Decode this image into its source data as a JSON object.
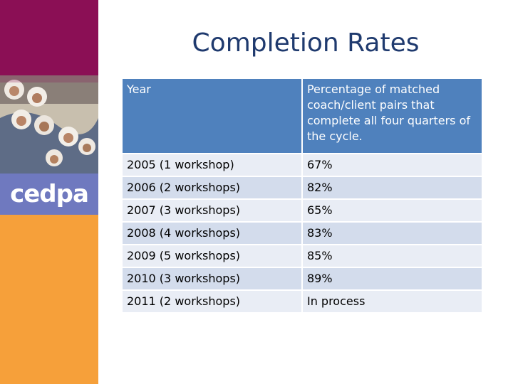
{
  "slide": {
    "title": "Completion Rates"
  },
  "logo": {
    "text": "cedpa"
  },
  "photo": {
    "subject": "group-photo"
  },
  "colors": {
    "purple": "#8b0f55",
    "logo_blue": "#6f79bf",
    "orange": "#f6a03a",
    "header_blue": "#4f81bd",
    "title": "#1f3a6e"
  },
  "table": {
    "headers": [
      "Year",
      "Percentage of matched coach/client pairs that complete all four quarters of the cycle."
    ],
    "rows": [
      [
        "2005 (1 workshop)",
        "67%"
      ],
      [
        "2006 (2 workshops)",
        "82%"
      ],
      [
        "2007 (3 workshops)",
        "65%"
      ],
      [
        "2008 (4 workshops)",
        "83%"
      ],
      [
        "2009 (5 workshops)",
        "85%"
      ],
      [
        "2010 (3 workshops)",
        "89%"
      ],
      [
        "2011 (2 workshops)",
        "In process"
      ]
    ]
  }
}
